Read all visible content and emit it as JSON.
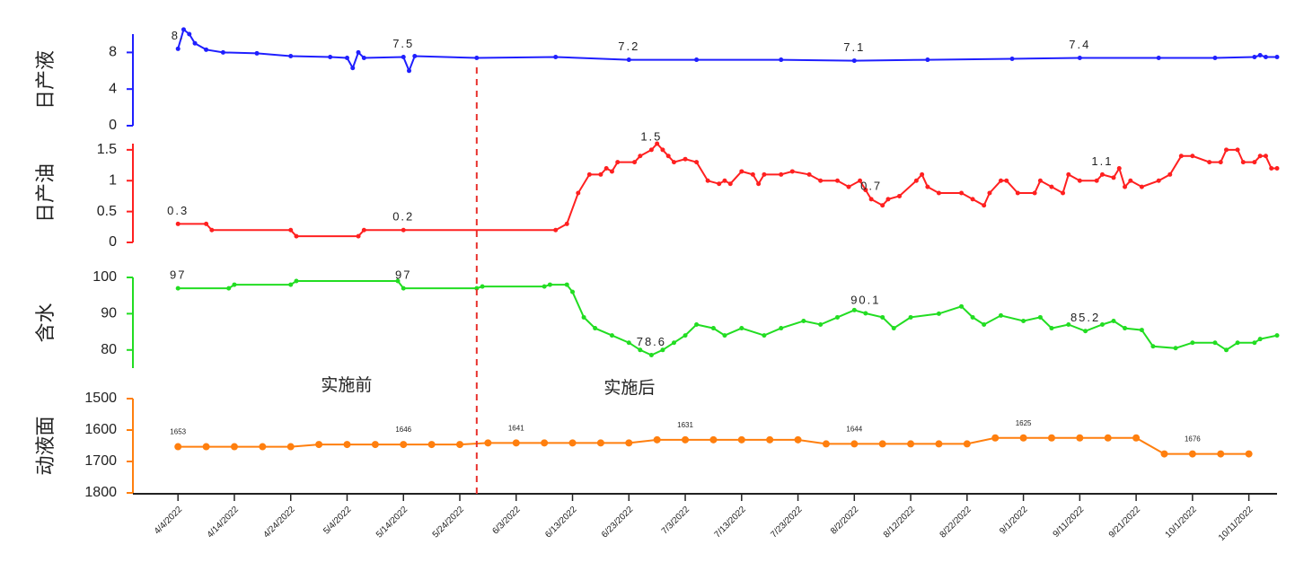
{
  "chart_data": [
    {
      "type": "line",
      "ylabel": "日产液",
      "color": "#1f1fff",
      "marker_radius": 2.5,
      "xlim": [
        "2022-03-27",
        "2022-10-16"
      ],
      "x": [
        "2022-04-04",
        "2022-04-05",
        "2022-04-06",
        "2022-04-07",
        "2022-04-09",
        "2022-04-12",
        "2022-04-18",
        "2022-04-24",
        "2022-05-01",
        "2022-05-04",
        "2022-05-05",
        "2022-05-06",
        "2022-05-07",
        "2022-05-14",
        "2022-05-15",
        "2022-05-16",
        "2022-05-27",
        "2022-06-10",
        "2022-06-23",
        "2022-07-05",
        "2022-07-20",
        "2022-08-02",
        "2022-08-15",
        "2022-08-30",
        "2022-09-11",
        "2022-09-25",
        "2022-10-05",
        "2022-10-12",
        "2022-10-13",
        "2022-10-14",
        "2022-10-16"
      ],
      "values": [
        8.4,
        10.5,
        10.0,
        9.0,
        8.3,
        8.0,
        7.9,
        7.6,
        7.5,
        7.4,
        6.3,
        8.0,
        7.4,
        7.5,
        6.0,
        7.6,
        7.4,
        7.5,
        7.2,
        7.2,
        7.2,
        7.1,
        7.2,
        7.3,
        7.4,
        7.4,
        7.4,
        7.5,
        7.7,
        7.5,
        7.5
      ],
      "value_labels": [
        "8.",
        null,
        null,
        null,
        null,
        null,
        null,
        null,
        null,
        null,
        null,
        null,
        null,
        "7.5",
        null,
        null,
        null,
        null,
        "7.2",
        null,
        null,
        "7.1",
        null,
        null,
        "7.4",
        null,
        null,
        null,
        null,
        null,
        null
      ],
      "ylim": [
        0,
        10
      ],
      "yticks": [
        0,
        4,
        8
      ]
    },
    {
      "type": "line",
      "ylabel": "日产油",
      "color": "#ff2020",
      "marker_radius": 2.5,
      "xlim": [
        "2022-03-27",
        "2022-10-16"
      ],
      "x": [
        "2022-04-04",
        "2022-04-09",
        "2022-04-10",
        "2022-04-24",
        "2022-04-25",
        "2022-05-06",
        "2022-05-07",
        "2022-05-14",
        "2022-06-10",
        "2022-06-12",
        "2022-06-14",
        "2022-06-16",
        "2022-06-18",
        "2022-06-19",
        "2022-06-20",
        "2022-06-21",
        "2022-06-24",
        "2022-06-25",
        "2022-06-27",
        "2022-06-28",
        "2022-06-29",
        "2022-06-30",
        "2022-07-01",
        "2022-07-03",
        "2022-07-05",
        "2022-07-07",
        "2022-07-09",
        "2022-07-10",
        "2022-07-11",
        "2022-07-13",
        "2022-07-15",
        "2022-07-16",
        "2022-07-17",
        "2022-07-20",
        "2022-07-22",
        "2022-07-25",
        "2022-07-27",
        "2022-07-30",
        "2022-08-01",
        "2022-08-03",
        "2022-08-04",
        "2022-08-05",
        "2022-08-07",
        "2022-08-08",
        "2022-08-10",
        "2022-08-13",
        "2022-08-14",
        "2022-08-15",
        "2022-08-17",
        "2022-08-21",
        "2022-08-23",
        "2022-08-25",
        "2022-08-26",
        "2022-08-28",
        "2022-08-29",
        "2022-08-31",
        "2022-09-03",
        "2022-09-04",
        "2022-09-06",
        "2022-09-08",
        "2022-09-09",
        "2022-09-11",
        "2022-09-14",
        "2022-09-15",
        "2022-09-17",
        "2022-09-18",
        "2022-09-19",
        "2022-09-20",
        "2022-09-22",
        "2022-09-25",
        "2022-09-27",
        "2022-09-29",
        "2022-10-01",
        "2022-10-04",
        "2022-10-06",
        "2022-10-07",
        "2022-10-09",
        "2022-10-10",
        "2022-10-12",
        "2022-10-13",
        "2022-10-14",
        "2022-10-15",
        "2022-10-16"
      ],
      "values": [
        0.3,
        0.3,
        0.2,
        0.2,
        0.1,
        0.1,
        0.2,
        0.2,
        0.2,
        0.3,
        0.8,
        1.1,
        1.1,
        1.2,
        1.15,
        1.3,
        1.3,
        1.4,
        1.5,
        1.6,
        1.5,
        1.4,
        1.3,
        1.35,
        1.3,
        1.0,
        0.95,
        1.0,
        0.95,
        1.15,
        1.1,
        0.95,
        1.1,
        1.1,
        1.15,
        1.1,
        1.0,
        1.0,
        0.9,
        1.0,
        0.85,
        0.7,
        0.6,
        0.7,
        0.75,
        1.0,
        1.1,
        0.9,
        0.8,
        0.8,
        0.7,
        0.6,
        0.8,
        1.0,
        1.0,
        0.8,
        0.8,
        1.0,
        0.9,
        0.8,
        1.1,
        1.0,
        1.0,
        1.1,
        1.05,
        1.2,
        0.9,
        1.0,
        0.9,
        1.0,
        1.1,
        1.4,
        1.4,
        1.3,
        1.3,
        1.5,
        1.5,
        1.3,
        1.3,
        1.4,
        1.4,
        1.2,
        1.2
      ],
      "value_labels": [
        "0.3",
        null,
        null,
        null,
        null,
        null,
        null,
        "0.2",
        null,
        null,
        null,
        null,
        null,
        null,
        null,
        null,
        null,
        null,
        "1.5",
        null,
        null,
        null,
        null,
        null,
        null,
        null,
        null,
        null,
        null,
        null,
        null,
        null,
        null,
        null,
        null,
        null,
        null,
        null,
        null,
        null,
        null,
        "0.7",
        null,
        null,
        null,
        null,
        null,
        null,
        null,
        null,
        null,
        null,
        null,
        null,
        null,
        null,
        null,
        null,
        null,
        null,
        null,
        null,
        null,
        "1.1",
        null,
        null,
        null,
        null,
        null,
        null,
        null,
        null,
        null,
        null,
        null,
        null,
        null,
        null,
        null,
        null,
        null,
        null,
        null
      ],
      "ylim": [
        0,
        1.6
      ],
      "yticks": [
        0,
        0.5,
        1,
        1.5
      ]
    },
    {
      "type": "line",
      "ylabel": "含水",
      "color": "#22dd22",
      "marker_radius": 2.5,
      "xlim": [
        "2022-03-27",
        "2022-10-16"
      ],
      "x": [
        "2022-04-04",
        "2022-04-13",
        "2022-04-14",
        "2022-04-24",
        "2022-04-25",
        "2022-05-13",
        "2022-05-14",
        "2022-05-27",
        "2022-05-28",
        "2022-06-08",
        "2022-06-09",
        "2022-06-12",
        "2022-06-13",
        "2022-06-15",
        "2022-06-17",
        "2022-06-20",
        "2022-06-23",
        "2022-06-25",
        "2022-06-27",
        "2022-06-29",
        "2022-07-01",
        "2022-07-03",
        "2022-07-05",
        "2022-07-08",
        "2022-07-10",
        "2022-07-13",
        "2022-07-17",
        "2022-07-20",
        "2022-07-24",
        "2022-07-27",
        "2022-07-30",
        "2022-08-02",
        "2022-08-04",
        "2022-08-07",
        "2022-08-09",
        "2022-08-12",
        "2022-08-17",
        "2022-08-21",
        "2022-08-23",
        "2022-08-25",
        "2022-08-28",
        "2022-09-01",
        "2022-09-04",
        "2022-09-06",
        "2022-09-09",
        "2022-09-12",
        "2022-09-15",
        "2022-09-17",
        "2022-09-19",
        "2022-09-22",
        "2022-09-24",
        "2022-09-28",
        "2022-10-01",
        "2022-10-05",
        "2022-10-07",
        "2022-10-09",
        "2022-10-12",
        "2022-10-13",
        "2022-10-16"
      ],
      "values": [
        97,
        97,
        98,
        98,
        99,
        99,
        97,
        97,
        97.5,
        97.5,
        98,
        98,
        96,
        89,
        86,
        84,
        82,
        80,
        78.6,
        80,
        82,
        84,
        87,
        86,
        84,
        86,
        84,
        86,
        88,
        87,
        89,
        91,
        90.1,
        89,
        86,
        89,
        90,
        92,
        89,
        87,
        89.5,
        88,
        89,
        86,
        87,
        85.2,
        87,
        88,
        86,
        85.5,
        81,
        80.5,
        82,
        82,
        80,
        82,
        82,
        83,
        84
      ],
      "value_labels": [
        "97",
        null,
        null,
        null,
        null,
        null,
        "97",
        null,
        null,
        null,
        null,
        null,
        null,
        null,
        null,
        null,
        null,
        null,
        "78.6",
        null,
        null,
        null,
        null,
        null,
        null,
        null,
        null,
        null,
        null,
        null,
        null,
        null,
        "90.1",
        null,
        null,
        null,
        null,
        null,
        null,
        null,
        null,
        null,
        null,
        null,
        null,
        "85.2",
        null,
        null,
        null,
        null,
        null,
        null,
        null,
        null,
        null,
        null,
        null,
        null,
        null
      ],
      "ylim": [
        75,
        100
      ],
      "yticks": [
        80,
        90,
        100
      ]
    },
    {
      "type": "line",
      "ylabel": "动液面",
      "color": "#ff7f0e",
      "marker_radius": 4,
      "xlim": [
        "2022-03-27",
        "2022-10-16"
      ],
      "xticks": [
        {
          "value": "2022-04-04",
          "label": "4/4/2022"
        },
        {
          "value": "2022-04-14",
          "label": "4/14/2022"
        },
        {
          "value": "2022-04-24",
          "label": "4/24/2022"
        },
        {
          "value": "2022-05-04",
          "label": "5/4/2022"
        },
        {
          "value": "2022-05-14",
          "label": "5/14/2022"
        },
        {
          "value": "2022-05-24",
          "label": "5/24/2022"
        },
        {
          "value": "2022-06-03",
          "label": "6/3/2022"
        },
        {
          "value": "2022-06-13",
          "label": "6/13/2022"
        },
        {
          "value": "2022-06-23",
          "label": "6/23/2022"
        },
        {
          "value": "2022-07-03",
          "label": "7/3/2022"
        },
        {
          "value": "2022-07-13",
          "label": "7/13/2022"
        },
        {
          "value": "2022-07-23",
          "label": "7/23/2022"
        },
        {
          "value": "2022-08-02",
          "label": "8/2/2022"
        },
        {
          "value": "2022-08-12",
          "label": "8/12/2022"
        },
        {
          "value": "2022-08-22",
          "label": "8/22/2022"
        },
        {
          "value": "2022-09-01",
          "label": "9/1/2022"
        },
        {
          "value": "2022-09-11",
          "label": "9/11/2022"
        },
        {
          "value": "2022-09-21",
          "label": "9/21/2022"
        },
        {
          "value": "2022-10-01",
          "label": "10/1/2022"
        },
        {
          "value": "2022-10-11",
          "label": "10/11/2022"
        }
      ],
      "x": [
        "2022-04-04",
        "2022-04-09",
        "2022-04-14",
        "2022-04-19",
        "2022-04-24",
        "2022-04-29",
        "2022-05-04",
        "2022-05-09",
        "2022-05-14",
        "2022-05-19",
        "2022-05-24",
        "2022-05-29",
        "2022-06-03",
        "2022-06-08",
        "2022-06-13",
        "2022-06-18",
        "2022-06-23",
        "2022-06-28",
        "2022-07-03",
        "2022-07-08",
        "2022-07-13",
        "2022-07-18",
        "2022-07-23",
        "2022-07-28",
        "2022-08-02",
        "2022-08-07",
        "2022-08-12",
        "2022-08-17",
        "2022-08-22",
        "2022-08-27",
        "2022-09-01",
        "2022-09-06",
        "2022-09-11",
        "2022-09-16",
        "2022-09-21",
        "2022-09-26",
        "2022-10-01",
        "2022-10-06",
        "2022-10-11"
      ],
      "values": [
        1653,
        1653,
        1653,
        1653,
        1653,
        1646,
        1646,
        1646,
        1646,
        1646,
        1646,
        1641,
        1641,
        1641,
        1641,
        1641,
        1641,
        1631,
        1631,
        1631,
        1631,
        1631,
        1631,
        1644,
        1644,
        1644,
        1644,
        1644,
        1644,
        1625,
        1625,
        1625,
        1625,
        1625,
        1625,
        1676,
        1676,
        1676,
        1676
      ],
      "value_labels": [
        "1653",
        null,
        null,
        null,
        null,
        null,
        null,
        null,
        "1646",
        null,
        null,
        null,
        "1641",
        null,
        null,
        null,
        null,
        null,
        "1631",
        null,
        null,
        null,
        null,
        null,
        "1644",
        null,
        null,
        null,
        null,
        null,
        "1625",
        null,
        null,
        null,
        null,
        null,
        "1676",
        null,
        null
      ],
      "ylim": [
        1800,
        1500
      ],
      "yticks": [
        1500,
        1600,
        1700,
        1800
      ]
    }
  ],
  "divider": {
    "x": "2022-05-27",
    "color": "#e8322e"
  },
  "phase_labels": [
    "实施前",
    "实施后"
  ]
}
